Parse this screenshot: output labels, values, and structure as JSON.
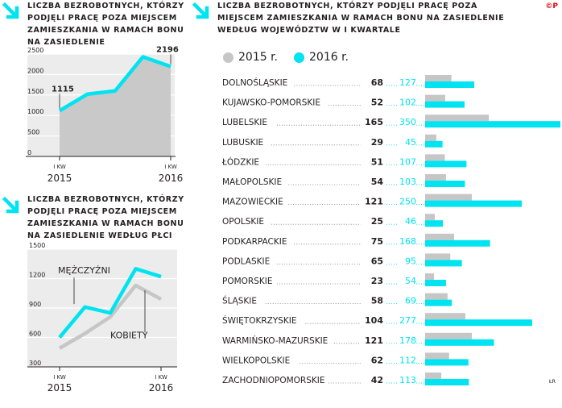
{
  "colors": {
    "cyan": "#00e3f0",
    "gray": "#c6c6c6",
    "text": "#231f20",
    "red": "#e30613"
  },
  "credit": "©P",
  "source": "ŁR",
  "titles": {
    "total": "Liczba bezrobotnych, którzy podjęli pracę poza miejscem zamieszkania w ramach bonu na zasiedlenie",
    "gender": "Liczba bezrobotnych, którzy podjęli pracę poza miejscem zamieszkania w ramach bonu na zasiedlenie według płci",
    "regions": "Liczba bezrobotnych, którzy podjęli pracę poza miejscem zamieszkania w ramach bonu na zasiedlenie według województw w I kwartale"
  },
  "chart_data": [
    {
      "type": "area",
      "title": "Liczba bezrobotnych, którzy podjęli pracę poza miejscem zamieszkania w ramach bonu na zasiedlenie",
      "x": [
        0,
        1,
        2,
        3,
        4
      ],
      "x_tick_labels": [
        {
          "x": 0,
          "label": "I KW",
          "year": "2015"
        },
        {
          "x": 4,
          "label": "I KW",
          "year": "2016"
        }
      ],
      "values": [
        1115,
        1520,
        1600,
        2430,
        2196
      ],
      "point_labels": [
        {
          "index": 0,
          "text": "1115"
        },
        {
          "index": 4,
          "text": "2196"
        }
      ],
      "ylim": [
        0,
        2500
      ],
      "yticks": [
        0,
        500,
        1000,
        1500,
        2000,
        2500
      ],
      "grid": true
    },
    {
      "type": "line",
      "title": "Liczba bezrobotnych, którzy podjęli pracę poza miejscem zamieszkania w ramach bonu na zasiedlenie według płci",
      "x": [
        0,
        1,
        2,
        3,
        4
      ],
      "x_tick_labels": [
        {
          "x": 0,
          "label": "I KW",
          "year": "2015"
        },
        {
          "x": 4,
          "label": "I KW",
          "year": "2016"
        }
      ],
      "series": [
        {
          "name": "MĘŻCZYŹNI",
          "color": "#00e3f0",
          "values": [
            600,
            910,
            850,
            1300,
            1220
          ]
        },
        {
          "name": "KOBIETY",
          "color": "#c6c6c6",
          "values": [
            490,
            640,
            810,
            1130,
            990
          ]
        }
      ],
      "ylim": [
        300,
        1500
      ],
      "yticks": [
        300,
        600,
        900,
        1200,
        1500
      ],
      "grid": true
    },
    {
      "type": "bar",
      "title": "Liczba bezrobotnych, którzy podjęli pracę poza miejscem zamieszkania w ramach bonu na zasiedlenie według województw w I kwartale",
      "categories": [
        "DOLNOŚLĄSKIE",
        "KUJAWSKO-POMORSKIE",
        "LUBELSKIE",
        "LUBUSKIE",
        "ŁÓDZKIE",
        "MAŁOPOLSKIE",
        "MAZOWIECKIE",
        "OPOLSKIE",
        "PODKARPACKIE",
        "PODLASKIE",
        "POMORSKIE",
        "ŚLĄSKIE",
        "ŚWIĘTOKRZYSKIE",
        "WARMIŃSKO-MAZURSKIE",
        "WIELKOPOLSKIE",
        "ZACHODNIOPOMORSKIE"
      ],
      "series": [
        {
          "name": "2015 r.",
          "color": "#c6c6c6",
          "values": [
            68,
            52,
            165,
            29,
            51,
            54,
            121,
            25,
            75,
            65,
            23,
            58,
            104,
            121,
            62,
            42
          ]
        },
        {
          "name": "2016 r.",
          "color": "#00e3f0",
          "values": [
            127,
            102,
            350,
            45,
            107,
            103,
            250,
            46,
            168,
            95,
            54,
            69,
            277,
            178,
            112,
            113
          ]
        }
      ],
      "legend": "top-left"
    }
  ]
}
